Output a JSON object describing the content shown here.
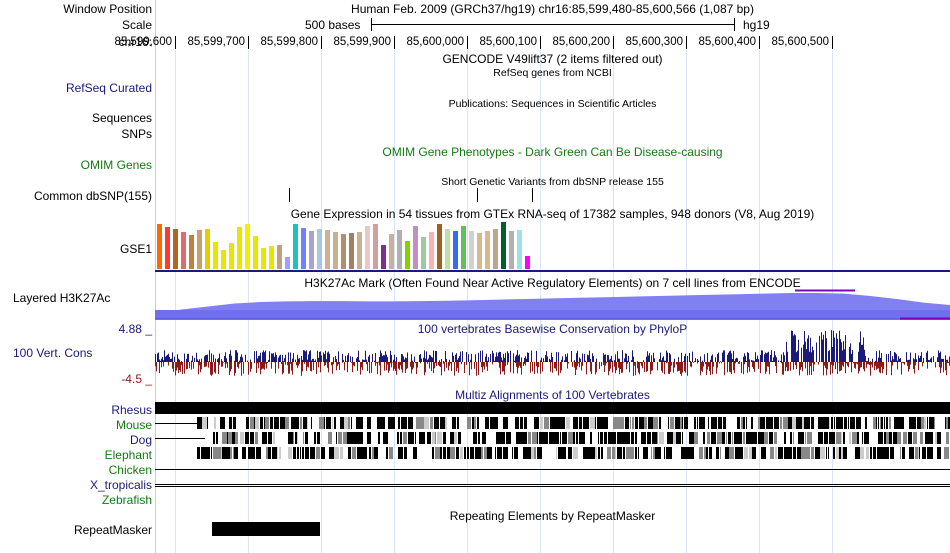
{
  "header": {
    "window_position_label": "Window Position",
    "scale_label": "Scale",
    "chrom_label": "chr16:",
    "position_text": "Human Feb. 2009 (GRCh37/hg19)   chr16:85,599,480-85,600,566 (1,087 bp)",
    "scale_text": "500 bases",
    "assembly": "hg19",
    "ruler_ticks": [
      "85,599,600",
      "85,599,700",
      "85,599,800",
      "85,599,900",
      "85,600,000",
      "85,600,100",
      "85,600,200",
      "85,600,300",
      "85,600,400",
      "85,600,500"
    ]
  },
  "tracks": {
    "gencode": {
      "title": "GENCODE V49lift37 (2 items filtered out)"
    },
    "refseq": {
      "side_label": "RefSeq Curated",
      "title": "RefSeq genes from NCBI"
    },
    "publications": {
      "side_label": "Sequences",
      "title": "Publications: Sequences in Scientific Articles"
    },
    "snps": {
      "side_label": "SNPs"
    },
    "omim": {
      "side_label": "OMIM Genes",
      "title": "OMIM Gene Phenotypes - Dark Green Can Be Disease-causing"
    },
    "dbsnp": {
      "side_label": "Common dbSNP(155)",
      "title": "Short Genetic Variants from dbSNP release 155"
    },
    "gtex": {
      "side_label": "GSE1",
      "title": "Gene Expression in 54 tissues from GTEx RNA-seq of 17382 samples, 948 donors (V8, Aug 2019)",
      "colors": [
        "#ff6a00",
        "#ff3b2f",
        "#b5651d",
        "#e06b6b",
        "#c08040",
        "#c8a070",
        "#e6cc00",
        "#e6e600",
        "#e6e600",
        "#e6e600",
        "#e6e600",
        "#f0f000",
        "#e6e600",
        "#e6e600",
        "#e6e600",
        "#c0a080",
        "#a0a0ff",
        "#20c0c0",
        "#7080ff",
        "#b0a0d0",
        "#a8c8e0",
        "#d0b090",
        "#c8b090",
        "#b09070",
        "#a08060",
        "#c8b090",
        "#e8c8c8",
        "#d0a0a0",
        "#7a3090",
        "#c8b0a0",
        "#b0b0b0",
        "#88d000",
        "#c090c0",
        "#a0c8a0",
        "#ffb0b0",
        "#a06020",
        "#c0e0a0",
        "#3070f0",
        "#60c060",
        "#d0d0d0",
        "#d8b890",
        "#d8b890",
        "#b8a890",
        "#006030",
        "#b0b0b0",
        "#a0e0e0",
        "#ff00ff"
      ],
      "values": [
        0.95,
        0.9,
        0.85,
        0.78,
        0.72,
        0.82,
        0.85,
        0.58,
        0.4,
        0.55,
        0.9,
        0.95,
        0.7,
        0.45,
        0.48,
        0.5,
        0.25,
        0.95,
        0.88,
        0.8,
        0.85,
        0.82,
        0.78,
        0.75,
        0.76,
        0.78,
        0.92,
        0.95,
        0.5,
        0.75,
        0.82,
        0.6,
        0.92,
        0.68,
        0.78,
        0.95,
        0.85,
        0.8,
        0.92,
        0.8,
        0.76,
        0.8,
        0.85,
        1.0,
        0.8,
        0.82,
        0.28
      ]
    },
    "h3k27ac": {
      "side_label": "Layered H3K27Ac",
      "title": "H3K27Ac Mark (Often Found Near Active Regulatory Elements) on 7 cell lines from ENCODE",
      "profile": [
        0.2,
        0.35,
        0.45,
        0.55,
        0.6,
        0.62,
        0.63,
        0.63,
        0.62,
        0.62,
        0.63,
        0.64,
        0.66,
        0.68,
        0.7,
        0.72,
        0.74,
        0.76,
        0.78,
        0.8,
        0.82,
        0.84,
        0.86,
        0.88,
        0.9,
        0.9,
        0.88,
        0.8,
        0.7,
        0.58,
        0.5
      ]
    },
    "phylop": {
      "side_label": "100 Vert. Cons",
      "title": "100 vertebrates Basewise Conservation by PhyloP",
      "max_label": "4.88 _",
      "min_label": "-4.5 _",
      "y_max": 4.88,
      "y_min": -4.5
    },
    "multiz": {
      "title": "Multiz Alignments of 100 Vertebrates",
      "species": [
        {
          "name": "Rhesus",
          "color": "#1a1a7a"
        },
        {
          "name": "Mouse",
          "color": "#137a13"
        },
        {
          "name": "Dog",
          "color": "#1a1a7a"
        },
        {
          "name": "Elephant",
          "color": "#137a13"
        },
        {
          "name": "Chicken",
          "color": "#137a13"
        },
        {
          "name": "X_tropicalis",
          "color": "#1a1a7a"
        },
        {
          "name": "Zebrafish",
          "color": "#137a13"
        }
      ]
    },
    "repeatmasker": {
      "side_label": "RepeatMasker",
      "title": "Repeating Elements by RepeatMasker"
    }
  },
  "colors": {
    "label_navy": "#1a1a7a",
    "label_green": "#137a13",
    "conservation_pos": "#1a1a7a",
    "conservation_neg": "#8b1a1a",
    "h3k27ac_fill": "#8080f0",
    "separator": "#1a1a7a"
  }
}
